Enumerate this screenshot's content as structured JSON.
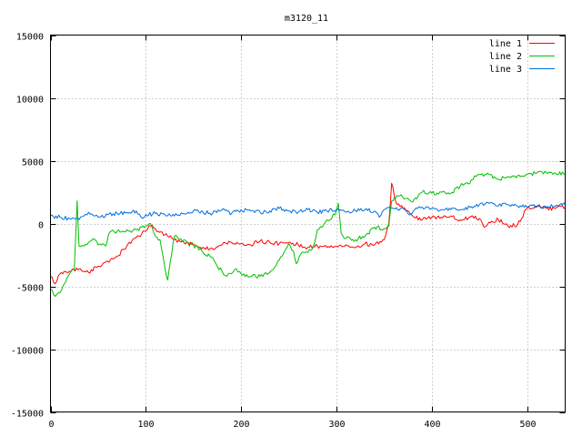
{
  "chart_data": {
    "type": "line",
    "title": "m3120_11",
    "xlabel": "",
    "ylabel": "",
    "xlim": [
      0,
      540
    ],
    "ylim": [
      -15000,
      15000
    ],
    "x_ticks": [
      0,
      100,
      200,
      300,
      400,
      500
    ],
    "y_ticks": [
      -15000,
      -10000,
      -5000,
      0,
      5000,
      10000,
      15000
    ],
    "grid": true,
    "legend_position": "top-right",
    "series": [
      {
        "name": "line 1",
        "color": "#ff0000",
        "points": [
          [
            0,
            -4200
          ],
          [
            5,
            -4800
          ],
          [
            10,
            -4000
          ],
          [
            20,
            -3800
          ],
          [
            30,
            -3600
          ],
          [
            40,
            -3900
          ],
          [
            50,
            -3400
          ],
          [
            60,
            -3000
          ],
          [
            70,
            -2600
          ],
          [
            80,
            -1800
          ],
          [
            90,
            -1100
          ],
          [
            100,
            -600
          ],
          [
            105,
            -200
          ],
          [
            110,
            -400
          ],
          [
            120,
            -900
          ],
          [
            130,
            -1300
          ],
          [
            140,
            -1500
          ],
          [
            150,
            -1700
          ],
          [
            160,
            -1900
          ],
          [
            170,
            -2000
          ],
          [
            180,
            -1700
          ],
          [
            190,
            -1500
          ],
          [
            200,
            -1600
          ],
          [
            210,
            -1700
          ],
          [
            220,
            -1400
          ],
          [
            230,
            -1500
          ],
          [
            240,
            -1600
          ],
          [
            250,
            -1500
          ],
          [
            260,
            -1700
          ],
          [
            270,
            -1900
          ],
          [
            280,
            -1800
          ],
          [
            290,
            -1900
          ],
          [
            300,
            -1800
          ],
          [
            310,
            -1700
          ],
          [
            320,
            -1900
          ],
          [
            330,
            -1600
          ],
          [
            340,
            -1700
          ],
          [
            350,
            -1300
          ],
          [
            355,
            0
          ],
          [
            358,
            3200
          ],
          [
            362,
            1800
          ],
          [
            370,
            1200
          ],
          [
            380,
            600
          ],
          [
            390,
            300
          ],
          [
            400,
            500
          ],
          [
            410,
            500
          ],
          [
            420,
            600
          ],
          [
            430,
            300
          ],
          [
            440,
            500
          ],
          [
            450,
            400
          ],
          [
            455,
            -300
          ],
          [
            460,
            100
          ],
          [
            470,
            300
          ],
          [
            480,
            -200
          ],
          [
            490,
            -100
          ],
          [
            500,
            1200
          ],
          [
            510,
            1300
          ],
          [
            520,
            1200
          ],
          [
            530,
            1200
          ],
          [
            540,
            1300
          ]
        ]
      },
      {
        "name": "line 2",
        "color": "#00c000",
        "points": [
          [
            0,
            -5200
          ],
          [
            5,
            -5800
          ],
          [
            10,
            -5500
          ],
          [
            20,
            -4000
          ],
          [
            25,
            -3600
          ],
          [
            28,
            1800
          ],
          [
            30,
            -1800
          ],
          [
            35,
            -1800
          ],
          [
            40,
            -1500
          ],
          [
            45,
            -1200
          ],
          [
            50,
            -1700
          ],
          [
            55,
            -1600
          ],
          [
            58,
            -1800
          ],
          [
            62,
            -700
          ],
          [
            70,
            -600
          ],
          [
            80,
            -500
          ],
          [
            85,
            -700
          ],
          [
            90,
            -500
          ],
          [
            100,
            -200
          ],
          [
            105,
            0
          ],
          [
            110,
            -1000
          ],
          [
            115,
            -1300
          ],
          [
            120,
            -3500
          ],
          [
            123,
            -4500
          ],
          [
            130,
            -1000
          ],
          [
            135,
            -1300
          ],
          [
            140,
            -1300
          ],
          [
            150,
            -1700
          ],
          [
            160,
            -2300
          ],
          [
            170,
            -2700
          ],
          [
            175,
            -3400
          ],
          [
            180,
            -3800
          ],
          [
            185,
            -4200
          ],
          [
            190,
            -4000
          ],
          [
            195,
            -3600
          ],
          [
            200,
            -4000
          ],
          [
            210,
            -4200
          ],
          [
            220,
            -4200
          ],
          [
            230,
            -3900
          ],
          [
            235,
            -3500
          ],
          [
            240,
            -2900
          ],
          [
            245,
            -2300
          ],
          [
            250,
            -1600
          ],
          [
            255,
            -2200
          ],
          [
            258,
            -3200
          ],
          [
            262,
            -2500
          ],
          [
            270,
            -2300
          ],
          [
            275,
            -2000
          ],
          [
            280,
            -500
          ],
          [
            285,
            -300
          ],
          [
            290,
            300
          ],
          [
            295,
            400
          ],
          [
            300,
            1000
          ],
          [
            302,
            1600
          ],
          [
            305,
            -800
          ],
          [
            310,
            -1200
          ],
          [
            320,
            -1300
          ],
          [
            330,
            -1000
          ],
          [
            340,
            -300
          ],
          [
            350,
            -400
          ],
          [
            355,
            -200
          ],
          [
            358,
            1800
          ],
          [
            365,
            2200
          ],
          [
            375,
            2000
          ],
          [
            380,
            1700
          ],
          [
            390,
            2500
          ],
          [
            400,
            2400
          ],
          [
            410,
            2500
          ],
          [
            420,
            2400
          ],
          [
            430,
            3000
          ],
          [
            440,
            3200
          ],
          [
            445,
            3800
          ],
          [
            450,
            3900
          ],
          [
            460,
            3900
          ],
          [
            470,
            3500
          ],
          [
            480,
            3700
          ],
          [
            490,
            3800
          ],
          [
            500,
            3900
          ],
          [
            510,
            4000
          ],
          [
            520,
            4100
          ],
          [
            530,
            4000
          ],
          [
            540,
            3900
          ]
        ]
      },
      {
        "name": "line 3",
        "color": "#0070e0",
        "points": [
          [
            0,
            600
          ],
          [
            10,
            500
          ],
          [
            20,
            400
          ],
          [
            25,
            400
          ],
          [
            30,
            300
          ],
          [
            35,
            600
          ],
          [
            40,
            900
          ],
          [
            50,
            500
          ],
          [
            60,
            700
          ],
          [
            70,
            800
          ],
          [
            80,
            900
          ],
          [
            90,
            1000
          ],
          [
            95,
            500
          ],
          [
            100,
            700
          ],
          [
            110,
            800
          ],
          [
            120,
            700
          ],
          [
            130,
            600
          ],
          [
            140,
            800
          ],
          [
            150,
            1000
          ],
          [
            160,
            900
          ],
          [
            170,
            800
          ],
          [
            180,
            1100
          ],
          [
            190,
            800
          ],
          [
            200,
            1100
          ],
          [
            210,
            1000
          ],
          [
            220,
            900
          ],
          [
            230,
            1000
          ],
          [
            240,
            1200
          ],
          [
            250,
            1000
          ],
          [
            260,
            900
          ],
          [
            270,
            1100
          ],
          [
            280,
            900
          ],
          [
            290,
            1000
          ],
          [
            300,
            1100
          ],
          [
            310,
            900
          ],
          [
            320,
            1000
          ],
          [
            330,
            1100
          ],
          [
            340,
            1000
          ],
          [
            345,
            500
          ],
          [
            350,
            1100
          ],
          [
            360,
            1200
          ],
          [
            370,
            1200
          ],
          [
            378,
            700
          ],
          [
            385,
            1200
          ],
          [
            390,
            1300
          ],
          [
            400,
            1200
          ],
          [
            410,
            1100
          ],
          [
            420,
            1100
          ],
          [
            430,
            1100
          ],
          [
            440,
            1300
          ],
          [
            450,
            1500
          ],
          [
            460,
            1600
          ],
          [
            470,
            1400
          ],
          [
            480,
            1500
          ],
          [
            490,
            1400
          ],
          [
            500,
            1300
          ],
          [
            510,
            1400
          ],
          [
            520,
            1300
          ],
          [
            530,
            1400
          ],
          [
            540,
            1500
          ]
        ]
      }
    ]
  }
}
